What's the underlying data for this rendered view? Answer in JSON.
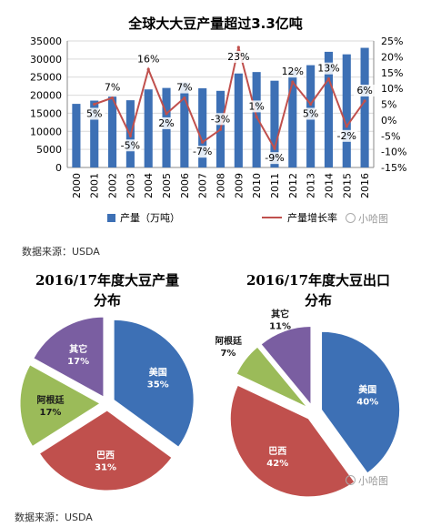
{
  "chart_data": [
    {
      "type": "bar",
      "title": "全球大大豆产量超过3.3亿吨",
      "categories": [
        "2000",
        "2001",
        "2002",
        "2003",
        "2004",
        "2005",
        "2006",
        "2007",
        "2008",
        "2009",
        "2010",
        "2011",
        "2012",
        "2013",
        "2014",
        "2015",
        "2016"
      ],
      "series": [
        {
          "name": "产量（万吨）",
          "type": "bar",
          "axis": "left",
          "color": "#3d70b5",
          "values": [
            17600,
            18500,
            19600,
            18600,
            21600,
            22000,
            23500,
            21900,
            21200,
            26000,
            26400,
            24000,
            26800,
            28300,
            32000,
            31300,
            33100
          ]
        },
        {
          "name": "产量增长率",
          "type": "line",
          "axis": "right",
          "color": "#c0504d",
          "values": [
            null,
            5,
            7,
            -5,
            16,
            2,
            7,
            -7,
            -3,
            23,
            1,
            -9,
            12,
            5,
            13,
            -2,
            6
          ],
          "labels": [
            "",
            "5%",
            "7%",
            "-5%",
            "16%",
            "2%",
            "7%",
            "-7%",
            "-3%",
            "23%",
            "1%",
            "-9%",
            "12%",
            "5%",
            "13%",
            "-2%",
            "6%"
          ]
        }
      ],
      "ylim_left": [
        0,
        35000
      ],
      "ylim_right": [
        -15,
        25
      ],
      "left_ticks": [
        "0",
        "5000",
        "10000",
        "15000",
        "20000",
        "25000",
        "30000",
        "35000"
      ],
      "right_ticks": [
        "-15%",
        "-10%",
        "-5%",
        "0%",
        "5%",
        "10%",
        "15%",
        "20%",
        "25%"
      ],
      "legend_position": "bottom"
    },
    {
      "type": "pie",
      "title_lines": [
        "2016/17年度大豆产量",
        "分布"
      ],
      "slices": [
        {
          "label": "美国",
          "value": 35,
          "pct": "35%",
          "color": "#3d70b5"
        },
        {
          "label": "巴西",
          "value": 31,
          "pct": "31%",
          "color": "#c0504d"
        },
        {
          "label": "阿根廷",
          "value": 17,
          "pct": "17%",
          "color": "#9bbb59"
        },
        {
          "label": "其它",
          "value": 17,
          "pct": "17%",
          "color": "#7a5ea1"
        }
      ]
    },
    {
      "type": "pie",
      "title_lines": [
        "2016/17年度大豆出口",
        "分布"
      ],
      "slices": [
        {
          "label": "美国",
          "value": 40,
          "pct": "40%",
          "color": "#3d70b5"
        },
        {
          "label": "巴西",
          "value": 42,
          "pct": "42%",
          "color": "#c0504d"
        },
        {
          "label": "阿根廷",
          "value": 7,
          "pct": "7%",
          "color": "#9bbb59"
        },
        {
          "label": "其它",
          "value": 11,
          "pct": "11%",
          "color": "#7a5ea1"
        }
      ]
    }
  ],
  "source_label": "数据来源：USDA",
  "source_label_2": "数据来源：USDA",
  "watermark": "小哈图",
  "watermark_2": "小哈图"
}
